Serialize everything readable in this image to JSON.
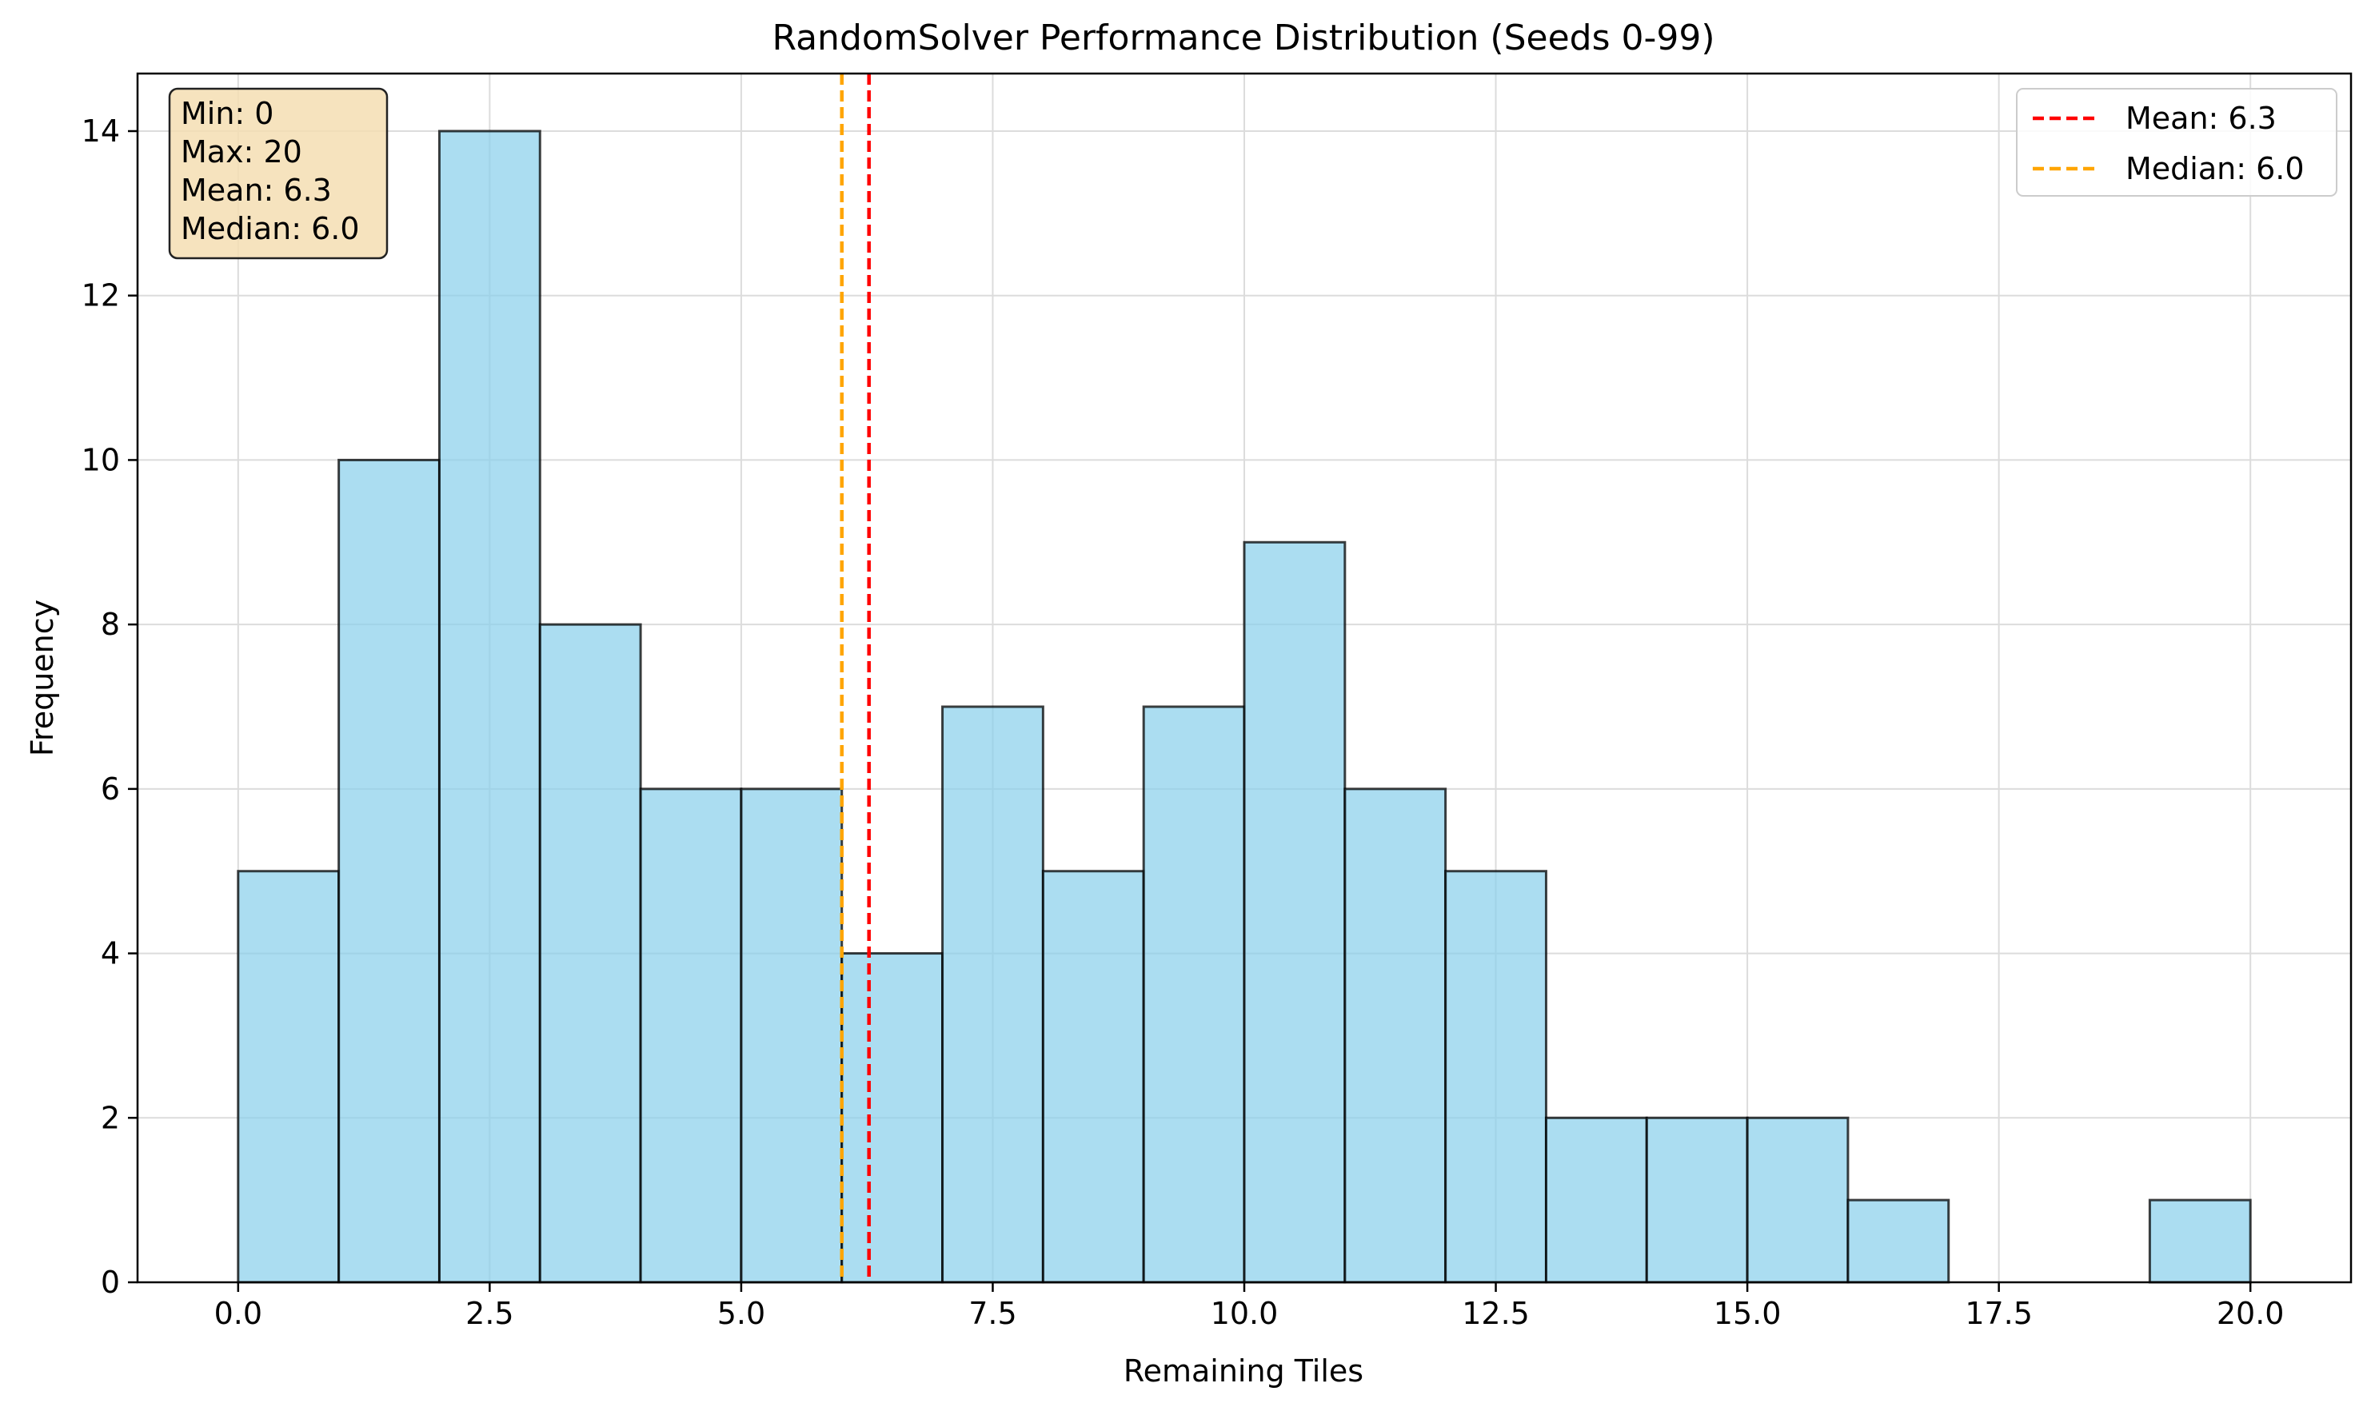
{
  "chart_data": {
    "type": "bar",
    "subtype": "histogram",
    "title": "RandomSolver Performance Distribution (Seeds 0-99)",
    "xlabel": "Remaining Tiles",
    "ylabel": "Frequency",
    "xlim": [
      -1,
      21
    ],
    "ylim": [
      0,
      14.7
    ],
    "xticks": [
      0,
      2.5,
      5,
      7.5,
      10,
      12.5,
      15,
      17.5,
      20
    ],
    "xtick_labels": [
      "0.0",
      "2.5",
      "5.0",
      "7.5",
      "10.0",
      "12.5",
      "15.0",
      "17.5",
      "20.0"
    ],
    "yticks": [
      0,
      2,
      4,
      6,
      8,
      10,
      12,
      14
    ],
    "ytick_labels": [
      "0",
      "2",
      "4",
      "6",
      "8",
      "10",
      "12",
      "14"
    ],
    "bin_edges": [
      0,
      1,
      2,
      3,
      4,
      5,
      6,
      7,
      8,
      9,
      10,
      11,
      12,
      13,
      14,
      15,
      16,
      17,
      18,
      19,
      20
    ],
    "values": [
      5,
      10,
      14,
      8,
      6,
      6,
      4,
      7,
      5,
      7,
      9,
      6,
      5,
      2,
      2,
      2,
      1,
      0,
      0,
      1
    ],
    "grid": true,
    "bar_color": "#87ceeb",
    "bar_edge_color": "#000000",
    "reference_lines": [
      {
        "name": "Mean: 6.3",
        "x": 6.27,
        "color": "#ff0000",
        "style": "dashed"
      },
      {
        "name": "Median: 6.0",
        "x": 6.0,
        "color": "#ffa500",
        "style": "dashed"
      }
    ],
    "legend": {
      "position": "top-right",
      "entries": [
        "Mean: 6.3",
        "Median: 6.0"
      ]
    },
    "stats_box": {
      "position": "top-left",
      "lines": [
        "Min: 0",
        "Max: 20",
        "Mean: 6.3",
        "Median: 6.0"
      ],
      "background": "#f5deb3"
    }
  }
}
